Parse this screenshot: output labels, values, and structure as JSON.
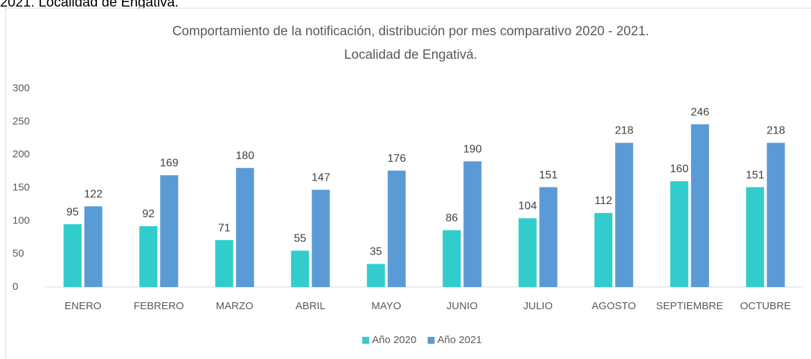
{
  "caption": "2021. Localidad de Engativá.",
  "chart_data": {
    "type": "bar",
    "title": [
      "Comportamiento de la notificación, distribución por mes comparativo 2020 - 2021.",
      "Localidad de Engativá."
    ],
    "categories": [
      "ENERO",
      "FEBRERO",
      "MARZO",
      "ABRIL",
      "MAYO",
      "JUNIO",
      "JULIO",
      "AGOSTO",
      "SEPTIEMBRE",
      "OCTUBRE"
    ],
    "series": [
      {
        "name": "Año 2020",
        "color": "#33cccc",
        "values": [
          95,
          92,
          71,
          55,
          35,
          86,
          104,
          112,
          160,
          151
        ]
      },
      {
        "name": "Año 2021",
        "color": "#5b9bd5",
        "values": [
          122,
          169,
          180,
          147,
          176,
          190,
          151,
          218,
          246,
          218
        ]
      }
    ],
    "ylim": [
      0,
      300
    ],
    "yticks": [
      0,
      50,
      100,
      150,
      200,
      250,
      300
    ],
    "grid": false,
    "legend": "bottom"
  }
}
